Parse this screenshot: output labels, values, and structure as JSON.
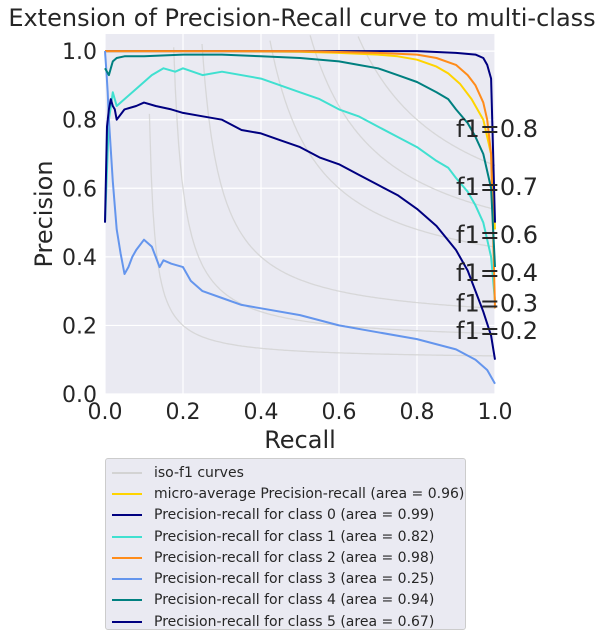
{
  "chart_data": {
    "type": "line",
    "title": "Extension of Precision-Recall curve to multi-class",
    "xlabel": "Recall",
    "ylabel": "Precision",
    "xlim": [
      0.0,
      1.0
    ],
    "ylim": [
      0.0,
      1.05
    ],
    "xticks": [
      "0.0",
      "0.2",
      "0.4",
      "0.6",
      "0.8",
      "1.0"
    ],
    "yticks": [
      "0.0",
      "0.2",
      "0.4",
      "0.6",
      "0.8",
      "1.0"
    ],
    "grid": true,
    "legend_position": "below",
    "iso_f1": {
      "legend": "iso-f1 curves",
      "color": "#d3d3d3",
      "values": [
        0.2,
        0.3,
        0.4,
        0.6,
        0.7,
        0.8
      ],
      "labels": [
        "f1=0.2",
        "f1=0.3",
        "f1=0.4",
        "f1=0.6",
        "f1=0.7",
        "f1=0.8"
      ],
      "label_y": [
        0.16,
        0.24,
        0.33,
        0.44,
        0.58,
        0.75
      ]
    },
    "series": [
      {
        "name": "micro-average Precision-recall (area = 0.96)",
        "color": "#ffd400",
        "x": [
          0,
          0.02,
          0.1,
          0.3,
          0.5,
          0.6,
          0.7,
          0.75,
          0.8,
          0.85,
          0.88,
          0.91,
          0.94,
          0.97,
          0.99,
          1.0
        ],
        "y": [
          1.0,
          1.0,
          1.0,
          1.0,
          0.998,
          0.995,
          0.99,
          0.985,
          0.975,
          0.955,
          0.935,
          0.905,
          0.86,
          0.8,
          0.7,
          0.48
        ]
      },
      {
        "name": "Precision-recall for class 0 (area = 0.99)",
        "color": "#000080",
        "x": [
          0,
          0.02,
          0.3,
          0.6,
          0.8,
          0.9,
          0.95,
          0.97,
          0.98,
          0.99,
          1.0
        ],
        "y": [
          1.0,
          1.0,
          1.0,
          1.0,
          1.0,
          0.995,
          0.99,
          0.98,
          0.96,
          0.92,
          0.5
        ]
      },
      {
        "name": "Precision-recall for class 1 (area = 0.82)",
        "color": "#40e0d0",
        "x": [
          0,
          0.01,
          0.02,
          0.03,
          0.05,
          0.08,
          0.12,
          0.15,
          0.18,
          0.2,
          0.25,
          0.3,
          0.4,
          0.5,
          0.55,
          0.6,
          0.65,
          0.7,
          0.75,
          0.8,
          0.85,
          0.88,
          0.9,
          0.93,
          0.95,
          0.97,
          0.98,
          0.99,
          1.0
        ],
        "y": [
          0.5,
          0.8,
          0.88,
          0.84,
          0.86,
          0.89,
          0.93,
          0.95,
          0.94,
          0.95,
          0.93,
          0.94,
          0.92,
          0.88,
          0.86,
          0.83,
          0.81,
          0.78,
          0.75,
          0.72,
          0.68,
          0.66,
          0.63,
          0.59,
          0.55,
          0.5,
          0.45,
          0.4,
          0.27
        ]
      },
      {
        "name": "Precision-recall for class 2 (area = 0.98)",
        "color": "#ff8c1a",
        "x": [
          0,
          0.02,
          0.2,
          0.5,
          0.7,
          0.8,
          0.85,
          0.9,
          0.93,
          0.95,
          0.97,
          0.98,
          0.99,
          1.0
        ],
        "y": [
          1.0,
          1.0,
          1.0,
          1.0,
          0.995,
          0.99,
          0.98,
          0.96,
          0.93,
          0.9,
          0.85,
          0.8,
          0.7,
          0.25
        ]
      },
      {
        "name": "Precision-recall for class 3 (area = 0.25)",
        "color": "#6495ed",
        "x": [
          0,
          0.003,
          0.007,
          0.01,
          0.02,
          0.03,
          0.04,
          0.05,
          0.06,
          0.07,
          0.08,
          0.1,
          0.12,
          0.14,
          0.15,
          0.17,
          0.2,
          0.22,
          0.25,
          0.3,
          0.35,
          0.4,
          0.5,
          0.6,
          0.7,
          0.8,
          0.9,
          0.95,
          0.98,
          1.0
        ],
        "y": [
          1.0,
          0.95,
          0.88,
          0.8,
          0.62,
          0.48,
          0.41,
          0.35,
          0.37,
          0.4,
          0.42,
          0.45,
          0.43,
          0.37,
          0.39,
          0.38,
          0.37,
          0.33,
          0.3,
          0.28,
          0.26,
          0.25,
          0.23,
          0.2,
          0.18,
          0.16,
          0.13,
          0.1,
          0.07,
          0.03
        ]
      },
      {
        "name": "Precision-recall for class 4 (area = 0.94)",
        "color": "#008080",
        "x": [
          0,
          0.005,
          0.01,
          0.015,
          0.02,
          0.03,
          0.05,
          0.1,
          0.2,
          0.3,
          0.4,
          0.5,
          0.6,
          0.65,
          0.7,
          0.75,
          0.8,
          0.85,
          0.88,
          0.9,
          0.93,
          0.95,
          0.97,
          0.98,
          0.99,
          1.0
        ],
        "y": [
          0.95,
          0.94,
          0.93,
          0.95,
          0.97,
          0.98,
          0.985,
          0.985,
          0.99,
          0.99,
          0.985,
          0.98,
          0.97,
          0.96,
          0.95,
          0.93,
          0.91,
          0.88,
          0.86,
          0.83,
          0.79,
          0.75,
          0.7,
          0.65,
          0.6,
          0.37
        ]
      },
      {
        "name": "Precision-recall for class 5 (area = 0.67)",
        "color": "#000080",
        "x": [
          0,
          0.005,
          0.01,
          0.015,
          0.02,
          0.025,
          0.03,
          0.05,
          0.08,
          0.1,
          0.13,
          0.17,
          0.2,
          0.25,
          0.3,
          0.35,
          0.4,
          0.45,
          0.5,
          0.55,
          0.6,
          0.65,
          0.7,
          0.75,
          0.8,
          0.85,
          0.9,
          0.93,
          0.95,
          0.97,
          0.99,
          1.0
        ],
        "y": [
          0.5,
          0.78,
          0.83,
          0.86,
          0.84,
          0.83,
          0.8,
          0.83,
          0.84,
          0.85,
          0.84,
          0.83,
          0.82,
          0.81,
          0.8,
          0.77,
          0.76,
          0.74,
          0.72,
          0.69,
          0.67,
          0.64,
          0.61,
          0.58,
          0.54,
          0.49,
          0.42,
          0.36,
          0.3,
          0.24,
          0.17,
          0.1
        ]
      }
    ]
  }
}
